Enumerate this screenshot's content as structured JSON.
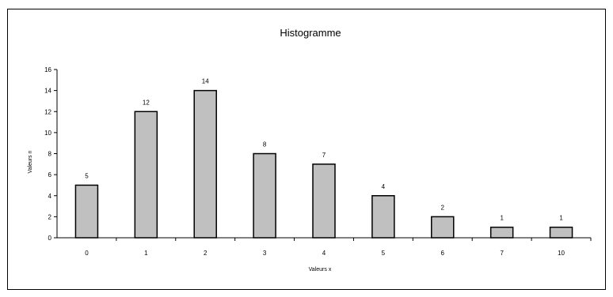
{
  "chart_data": {
    "type": "bar",
    "title": "Histogramme",
    "xlabel": "Valeurs x",
    "ylabel": "Valeurs n",
    "categories": [
      "0",
      "1",
      "2",
      "3",
      "4",
      "5",
      "6",
      "7",
      "10"
    ],
    "values": [
      5,
      12,
      14,
      8,
      7,
      4,
      2,
      1,
      1
    ],
    "y_ticks": [
      "0",
      "2",
      "4",
      "6",
      "8",
      "10",
      "12",
      "14",
      "16"
    ],
    "ylim": [
      0,
      16
    ],
    "grid": false,
    "legend": "none",
    "colors": {
      "bar_fill": "#c0c0c0",
      "bar_stroke": "#000000",
      "axis": "#000000"
    }
  }
}
